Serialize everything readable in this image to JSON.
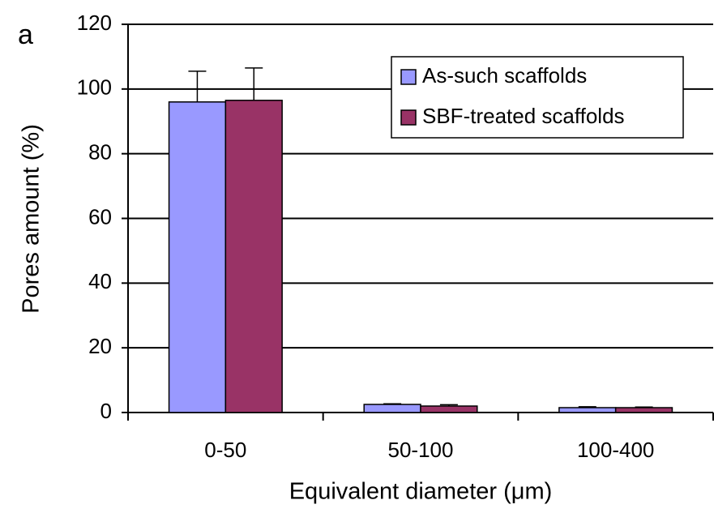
{
  "chart_data": {
    "type": "bar",
    "panel_label": "a",
    "y_label": "Pores amount (%)",
    "x_label": "Equivalent diameter (μm)",
    "categories": [
      "0-50",
      "50-100",
      "100-400"
    ],
    "series": [
      {
        "name": "As-such scaffolds",
        "color": "#9999ff",
        "values": [
          96,
          2.5,
          1.5
        ],
        "errors": [
          9.5,
          0.2,
          0.3
        ]
      },
      {
        "name": "SBF-treated scaffolds",
        "color": "#993366",
        "values": [
          96.5,
          2,
          1.5
        ],
        "errors": [
          10,
          0.4,
          0.2
        ]
      }
    ],
    "ylim": [
      0,
      120
    ],
    "yticks": [
      0,
      20,
      40,
      60,
      80,
      100,
      120
    ],
    "grid": true,
    "legend": "upper right"
  }
}
